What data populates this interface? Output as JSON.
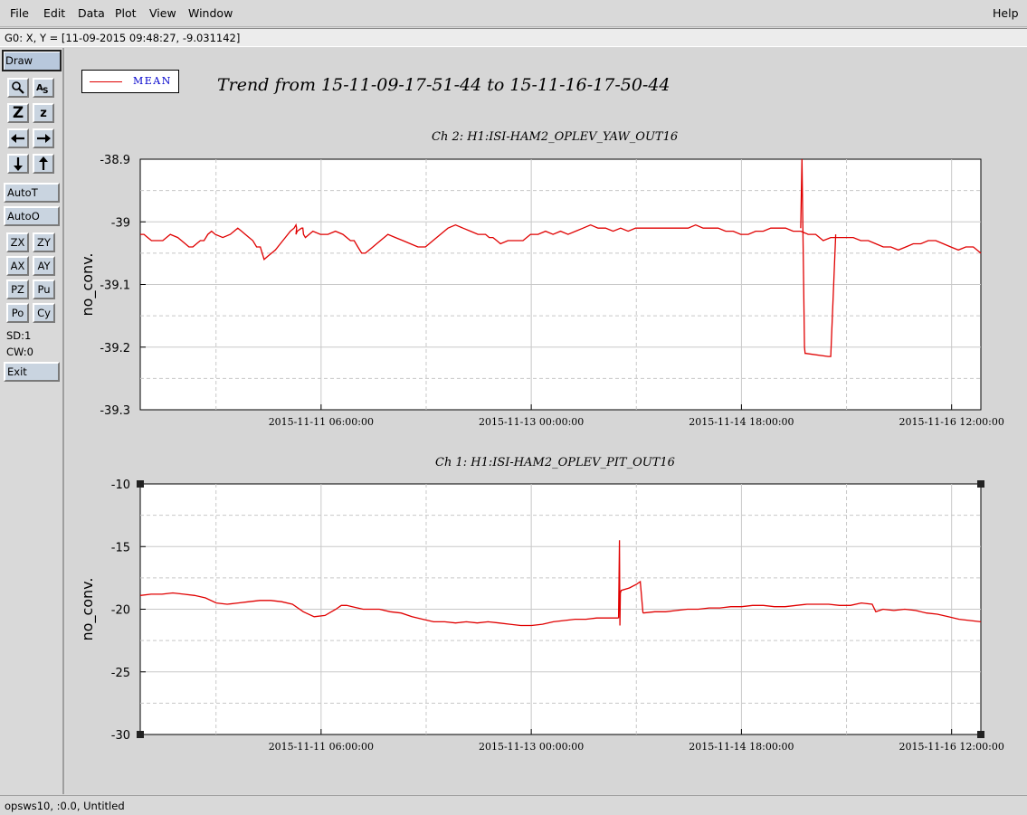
{
  "menu": {
    "file": "File",
    "edit": "Edit",
    "data": "Data",
    "plot": "Plot",
    "view": "View",
    "window": "Window",
    "help": "Help"
  },
  "coord_readout": "G0: X, Y = [11-09-2015 09:48:27, -9.031142]",
  "toolbar": {
    "draw": "Draw",
    "icons": {
      "pick": "Â",
      "zoom_in": "Z",
      "zoom_out": "z"
    },
    "auto_t": "AutoT",
    "auto_o": "AutoO",
    "zx": "ZX",
    "zy": "ZY",
    "ax": "AX",
    "ay": "AY",
    "pz": "PZ",
    "pu": "Pu",
    "po": "Po",
    "cy": "Cy",
    "sd": "SD:1",
    "cw": "CW:0",
    "exit": "Exit",
    "icon_names": [
      "magnifier-icon",
      "text-icon",
      "zoom-in-icon",
      "zoom-out-icon",
      "arrow-left-icon",
      "arrow-right-icon",
      "arrow-down-icon",
      "arrow-up-icon"
    ]
  },
  "legend": {
    "label": "MEAN",
    "color": "#e00000"
  },
  "trend_title": "Trend from 15-11-09-17-51-44 to 15-11-16-17-50-44",
  "status": "opsws10, :0.0, Untitled",
  "colors": {
    "series": "#e00000",
    "grid": "#c8c8c8",
    "legend_text": "#0000cc"
  },
  "chart_data": [
    {
      "type": "line",
      "title": "Ch 2: H1:ISI-HAM2_OPLEV_YAW_OUT16",
      "ylabel": "no_conv.",
      "xlabel": "",
      "x_tick_labels": [
        "2015-11-11 06:00:00",
        "2015-11-13 00:00:00",
        "2015-11-14 18:00:00",
        "2015-11-16 12:00:00"
      ],
      "x_range": [
        "2015-11-09 17:51:44",
        "2015-11-16 17:50:44"
      ],
      "y_ticks": [
        "-38.9",
        "-39",
        "-39.1",
        "-39.2",
        "-39.3"
      ],
      "ylim": [
        -39.3,
        -38.9
      ],
      "grid": true,
      "series": [
        {
          "name": "MEAN",
          "x_hours": [
            0,
            3,
            6,
            9,
            12,
            18,
            24,
            30,
            33,
            36,
            39,
            42,
            45,
            48,
            51,
            54,
            57,
            60,
            66,
            72,
            75,
            78,
            81,
            84,
            87,
            90,
            93,
            96,
            99,
            102,
            108,
            114,
            120,
            123,
            124.5,
            125,
            124.5,
            125.5,
            129,
            130,
            130.5,
            132,
            138,
            144,
            150,
            156,
            162,
            168,
            171,
            174,
            177,
            180,
            186,
            192,
            198,
            204,
            210,
            216,
            222,
            228,
            234,
            240,
            246,
            252,
            258,
            264,
            270,
            273,
            276,
            279,
            282,
            285,
            288,
            294,
            300,
            306,
            312,
            318,
            324,
            330,
            336,
            342,
            348,
            354,
            360,
            366,
            372,
            378,
            384,
            390,
            396,
            402,
            408,
            414,
            420,
            426,
            432,
            438,
            444,
            450,
            456,
            462,
            468,
            474,
            480,
            486,
            492,
            498,
            504,
            510,
            516,
            522,
            528,
            534,
            540,
            546,
            552,
            558,
            564,
            570,
            576,
            582,
            588,
            594,
            600,
            606,
            612,
            618,
            624,
            630,
            636,
            642,
            648,
            654,
            660,
            666,
            672
          ],
          "values": [
            -39.02,
            -39.02,
            -39.025,
            -39.03,
            -39.03,
            -39.03,
            -39.02,
            -39.025,
            -39.03,
            -39.035,
            -39.04,
            -39.04,
            -39.035,
            -39.03,
            -39.03,
            -39.02,
            -39.015,
            -39.02,
            -39.025,
            -39.02,
            -39.015,
            -39.01,
            -39.015,
            -39.02,
            -39.025,
            -39.03,
            -39.04,
            -39.04,
            -39.06,
            -39.055,
            -39.045,
            -39.03,
            -39.015,
            -39.01,
            -39.005,
            -39.01,
            -39.02,
            -39.015,
            -39.01,
            -39.01,
            -39.02,
            -39.025,
            -39.015,
            -39.02,
            -39.02,
            -39.015,
            -39.02,
            -39.03,
            -39.03,
            -39.04,
            -39.05,
            -39.05,
            -39.04,
            -39.03,
            -39.02,
            -39.025,
            -39.03,
            -39.035,
            -39.04,
            -39.04,
            -39.03,
            -39.02,
            -39.01,
            -39.005,
            -39.01,
            -39.015,
            -39.02,
            -39.02,
            -39.02,
            -39.025,
            -39.025,
            -39.03,
            -39.035,
            -39.03,
            -39.03,
            -39.03,
            -39.02,
            -39.02,
            -39.015,
            -39.02,
            -39.015,
            -39.02,
            -39.015,
            -39.01,
            -39.005,
            -39.01,
            -39.01,
            -39.015,
            -39.01,
            -39.015,
            -39.01,
            -39.01,
            -39.01,
            -39.01,
            -39.01,
            -39.01,
            -39.01,
            -39.01,
            -39.005,
            -39.01,
            -39.01,
            -39.01,
            -39.015,
            -39.015,
            -39.02,
            -39.02,
            -39.015,
            -39.015,
            -39.01,
            -39.01,
            -39.01,
            -39.015,
            -39.015,
            -39.02,
            -39.02,
            -39.03,
            -39.025,
            -39.025,
            -39.025,
            -39.025,
            -39.03,
            -39.03,
            -39.035,
            -39.04,
            -39.04,
            -39.045,
            -39.04,
            -39.035,
            -39.035,
            -39.03,
            -39.03,
            -39.035,
            -39.04,
            -39.045,
            -39.04,
            -39.04,
            -39.05
          ]
        }
      ],
      "spike": {
        "x_hours": [
          528,
          529,
          531,
          531.5,
          532,
          550,
          552,
          556
        ],
        "values": [
          -39.01,
          -38.9,
          -39.2,
          -39.21,
          -39.21,
          -39.215,
          -39.215,
          -39.02
        ]
      }
    },
    {
      "type": "line",
      "title": "Ch 1: H1:ISI-HAM2_OPLEV_PIT_OUT16",
      "ylabel": "no_conv.",
      "xlabel": "",
      "x_tick_labels": [
        "2015-11-11 06:00:00",
        "2015-11-13 00:00:00",
        "2015-11-14 18:00:00",
        "2015-11-16 12:00:00"
      ],
      "x_range": [
        "2015-11-09 17:51:44",
        "2015-11-16 17:50:44"
      ],
      "y_ticks": [
        "-10",
        "-15",
        "-20",
        "-25",
        "-30"
      ],
      "ylim": [
        -30,
        -10
      ],
      "grid": true,
      "series": [
        {
          "name": "MEAN",
          "x_hours": [
            0,
            12,
            24,
            36,
            48,
            60,
            72,
            84,
            96,
            108,
            120,
            132,
            144,
            156,
            168,
            180,
            192,
            204,
            216,
            222,
            228,
            234,
            240,
            246,
            252,
            264,
            276,
            288,
            300,
            312,
            324,
            336,
            348,
            360,
            372,
            384,
            396,
            408,
            420,
            432,
            444,
            456,
            468,
            480,
            492,
            504,
            516,
            528
          ],
          "values": [
            -18.9,
            -18.8,
            -18.8,
            -18.7,
            -18.8,
            -18.9,
            -19.1,
            -19.5,
            -19.6,
            -19.5,
            -19.4,
            -19.3,
            -19.3,
            -19.4,
            -19.6,
            -20.2,
            -20.6,
            -20.5,
            -20.0,
            -19.7,
            -19.7,
            -19.8,
            -19.9,
            -20.0,
            -20.0,
            -20.0,
            -20.2,
            -20.3,
            -20.6,
            -20.8,
            -21.0,
            -21.0,
            -21.1,
            -21.0,
            -21.1,
            -21.0,
            -21.1,
            -21.2,
            -21.3,
            -21.3,
            -21.2,
            -21.0,
            -20.9,
            -20.8,
            -20.8,
            -20.7,
            -20.7,
            -20.7
          ]
        },
        {
          "name": "MEAN",
          "x_hours": [
            555,
            568,
            580,
            592,
            604,
            616,
            628,
            640,
            652,
            664,
            676,
            688,
            700,
            712,
            724,
            736,
            748,
            760,
            772,
            784,
            796,
            808,
            812,
            820,
            832,
            844,
            856,
            868,
            880,
            892,
            904,
            916,
            928
          ],
          "values": [
            -20.3,
            -20.2,
            -20.2,
            -20.1,
            -20.0,
            -20.0,
            -19.9,
            -19.9,
            -19.8,
            -19.8,
            -19.7,
            -19.7,
            -19.8,
            -19.8,
            -19.7,
            -19.6,
            -19.6,
            -19.6,
            -19.7,
            -19.7,
            -19.5,
            -19.6,
            -20.2,
            -20.0,
            -20.1,
            -20.0,
            -20.1,
            -20.3,
            -20.4,
            -20.6,
            -20.8,
            -20.9,
            -21.0
          ]
        }
      ],
      "spike": {
        "x_hours": [
          528,
          529,
          529.5,
          530,
          531,
          540,
          548,
          552,
          555
        ],
        "values": [
          -20.7,
          -14.5,
          -21.3,
          -18.7,
          -18.5,
          -18.3,
          -18.0,
          -17.8,
          -20.3
        ]
      }
    }
  ]
}
